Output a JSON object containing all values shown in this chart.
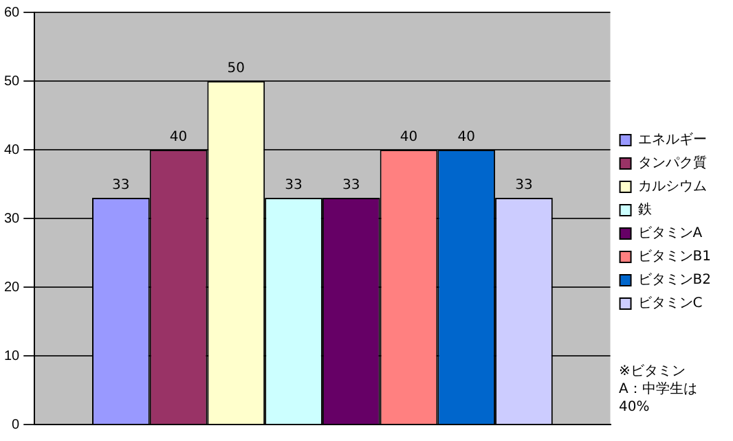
{
  "chart_data": {
    "type": "bar",
    "categories": [
      null
    ],
    "series": [
      {
        "name": "エネルギー",
        "color": "#9999ff",
        "values": [
          33
        ]
      },
      {
        "name": "タンパク質",
        "color": "#993366",
        "values": [
          40
        ]
      },
      {
        "name": "カルシウム",
        "color": "#ffffcc",
        "values": [
          50
        ]
      },
      {
        "name": "鉄",
        "color": "#ccffff",
        "values": [
          33
        ]
      },
      {
        "name": "ビタミンA",
        "color": "#660066",
        "values": [
          33
        ]
      },
      {
        "name": "ビタミンB1",
        "color": "#ff8080",
        "values": [
          40
        ]
      },
      {
        "name": "ビタミンB2",
        "color": "#0066cc",
        "values": [
          40
        ]
      },
      {
        "name": "ビタミンC",
        "color": "#ccccff",
        "values": [
          33
        ]
      }
    ],
    "ylim": [
      0,
      60
    ],
    "yticks": [
      0,
      10,
      20,
      30,
      40,
      50,
      60
    ],
    "grid": "y",
    "legend": "right",
    "data_labels": true,
    "annotations": [
      "※ビタミンA：中学生は40%"
    ]
  }
}
